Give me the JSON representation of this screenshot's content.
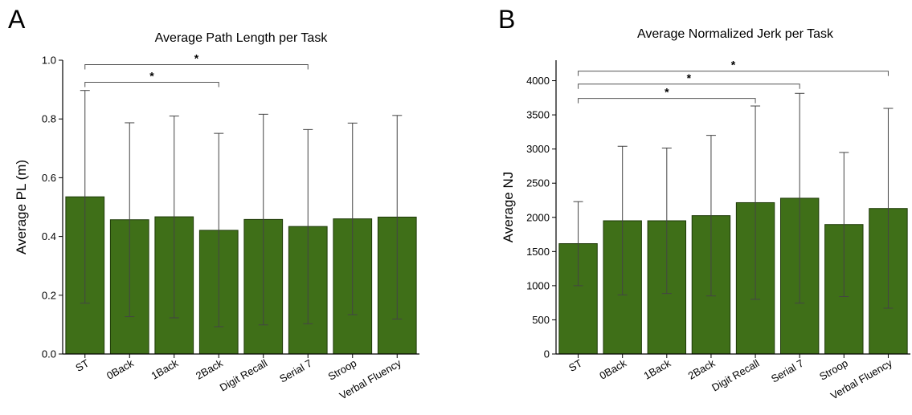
{
  "panels": {
    "a_label": "A",
    "b_label": "B"
  },
  "colors": {
    "bar_fill": "#3f6f18",
    "bar_stroke": "#1e3a08",
    "axis": "#000000",
    "errorbar": "#444444",
    "bracket": "#555555"
  },
  "chart_data": [
    {
      "type": "bar",
      "title": "Average Path Length per Task",
      "xlabel": "",
      "ylabel": "Average PL (m)",
      "ylim": [
        0,
        1.0
      ],
      "yticks": [
        0.0,
        0.2,
        0.4,
        0.6,
        0.8,
        1.0
      ],
      "ytick_labels": [
        "0.0",
        "0.2",
        "0.4",
        "0.6",
        "0.8",
        "1.0"
      ],
      "categories": [
        "ST",
        "0Back",
        "1Back",
        "2Back",
        "Digit Recall",
        "Serial 7",
        "Stroop",
        "Verbal Fluency"
      ],
      "values": [
        0.535,
        0.457,
        0.467,
        0.421,
        0.458,
        0.434,
        0.46,
        0.466
      ],
      "error_upper": [
        0.897,
        0.787,
        0.81,
        0.751,
        0.816,
        0.764,
        0.786,
        0.812
      ],
      "error_lower": [
        0.173,
        0.127,
        0.123,
        0.093,
        0.099,
        0.103,
        0.134,
        0.119
      ],
      "significance": [
        {
          "from": "ST",
          "to": "2Back",
          "y": 0.925,
          "label": "*"
        },
        {
          "from": "ST",
          "to": "Serial 7",
          "y": 0.985,
          "label": "*"
        }
      ],
      "grid": false,
      "legend": "none"
    },
    {
      "type": "bar",
      "title": "Average Normalized Jerk per Task",
      "xlabel": "",
      "ylabel": "Average NJ",
      "ylim": [
        0,
        4300
      ],
      "yticks": [
        0,
        500,
        1000,
        1500,
        2000,
        2500,
        3000,
        3500,
        4000
      ],
      "ytick_labels": [
        "0",
        "500",
        "1000",
        "1500",
        "2000",
        "2500",
        "3000",
        "3500",
        "4000"
      ],
      "categories": [
        "ST",
        "0Back",
        "1Back",
        "2Back",
        "Digit Recall",
        "Serial 7",
        "Stroop",
        "Verbal Fluency"
      ],
      "values": [
        1615,
        1950,
        1950,
        2025,
        2215,
        2280,
        1895,
        2130
      ],
      "error_upper": [
        2230,
        3040,
        3015,
        3200,
        3630,
        3815,
        2950,
        3595
      ],
      "error_lower": [
        1000,
        865,
        885,
        850,
        800,
        745,
        840,
        670
      ],
      "significance": [
        {
          "from": "ST",
          "to": "Digit Recall",
          "y": 3740,
          "label": "*"
        },
        {
          "from": "ST",
          "to": "Serial 7",
          "y": 3950,
          "label": "*"
        },
        {
          "from": "ST",
          "to": "Verbal Fluency",
          "y": 4140,
          "label": "*"
        }
      ],
      "grid": false,
      "legend": "none"
    }
  ]
}
